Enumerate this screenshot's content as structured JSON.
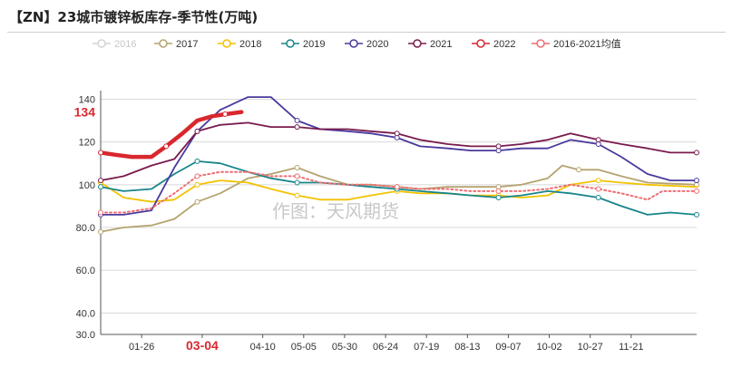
{
  "title": "【ZN】23城市镀锌板库存-季节性(万吨)",
  "watermark": "作图：天风期货",
  "chart_data": {
    "type": "line",
    "title": "【ZN】23城市镀锌板库存-季节性(万吨)",
    "xlabel": "",
    "ylabel": "",
    "ylim": [
      30,
      144
    ],
    "y_ticks": [
      "30.0",
      "40.0",
      "60.0",
      "80.0",
      "100",
      "120",
      "140"
    ],
    "x_ticks": [
      "01-26",
      "03-04",
      "04-10",
      "05-05",
      "05-30",
      "06-24",
      "07-19",
      "08-13",
      "09-07",
      "10-02",
      "10-27",
      "11-21"
    ],
    "highlight": {
      "x_label": "03-04",
      "y_label": "134"
    },
    "grid": true,
    "legend_position": "top",
    "x_domain": [
      "01-01",
      "12-31"
    ],
    "series": [
      {
        "name": "2016",
        "color": "#d4d4d4",
        "hidden": true,
        "values": []
      },
      {
        "name": "2017",
        "color": "#b5a36f",
        "values": [
          [
            "01-01",
            78
          ],
          [
            "01-15",
            80
          ],
          [
            "02-01",
            81
          ],
          [
            "02-15",
            84
          ],
          [
            "03-01",
            92
          ],
          [
            "03-15",
            96
          ],
          [
            "04-01",
            103
          ],
          [
            "04-15",
            105
          ],
          [
            "05-01",
            108
          ],
          [
            "05-15",
            104
          ],
          [
            "06-01",
            100
          ],
          [
            "06-15",
            100
          ],
          [
            "07-01",
            99
          ],
          [
            "07-15",
            98
          ],
          [
            "08-01",
            99
          ],
          [
            "08-15",
            99
          ],
          [
            "09-01",
            99
          ],
          [
            "09-15",
            100
          ],
          [
            "10-01",
            103
          ],
          [
            "10-10",
            109
          ],
          [
            "10-20",
            107
          ],
          [
            "11-01",
            107
          ],
          [
            "11-15",
            104
          ],
          [
            "12-01",
            101
          ],
          [
            "12-31",
            100
          ]
        ]
      },
      {
        "name": "2018",
        "color": "#f2c200",
        "values": [
          [
            "01-01",
            101
          ],
          [
            "01-15",
            94
          ],
          [
            "02-01",
            92
          ],
          [
            "02-15",
            93
          ],
          [
            "03-01",
            100
          ],
          [
            "03-15",
            102
          ],
          [
            "04-01",
            101
          ],
          [
            "04-15",
            98
          ],
          [
            "05-01",
            95
          ],
          [
            "05-15",
            93
          ],
          [
            "06-01",
            93
          ],
          [
            "06-15",
            95
          ],
          [
            "07-01",
            97
          ],
          [
            "07-15",
            96
          ],
          [
            "08-01",
            96
          ],
          [
            "08-15",
            95
          ],
          [
            "09-01",
            95
          ],
          [
            "09-15",
            94
          ],
          [
            "10-01",
            95
          ],
          [
            "10-15",
            100
          ],
          [
            "11-01",
            102
          ],
          [
            "11-15",
            101
          ],
          [
            "12-01",
            100
          ],
          [
            "12-31",
            99
          ]
        ]
      },
      {
        "name": "2019",
        "color": "#17858a",
        "values": [
          [
            "01-01",
            99
          ],
          [
            "01-15",
            97
          ],
          [
            "02-01",
            98
          ],
          [
            "02-15",
            105
          ],
          [
            "03-01",
            111
          ],
          [
            "03-15",
            110
          ],
          [
            "04-01",
            106
          ],
          [
            "04-15",
            103
          ],
          [
            "05-01",
            101
          ],
          [
            "05-15",
            101
          ],
          [
            "06-01",
            100
          ],
          [
            "06-15",
            99
          ],
          [
            "07-01",
            98
          ],
          [
            "07-15",
            97
          ],
          [
            "08-01",
            96
          ],
          [
            "08-15",
            95
          ],
          [
            "09-01",
            94
          ],
          [
            "09-15",
            95
          ],
          [
            "10-01",
            97
          ],
          [
            "10-15",
            96
          ],
          [
            "11-01",
            94
          ],
          [
            "11-15",
            90
          ],
          [
            "12-01",
            86
          ],
          [
            "12-15",
            87
          ],
          [
            "12-31",
            86
          ]
        ]
      },
      {
        "name": "2020",
        "color": "#4a3a9e",
        "values": [
          [
            "01-01",
            86
          ],
          [
            "01-15",
            86
          ],
          [
            "02-01",
            88
          ],
          [
            "02-15",
            108
          ],
          [
            "03-01",
            125
          ],
          [
            "03-15",
            135
          ],
          [
            "04-01",
            141
          ],
          [
            "04-15",
            141
          ],
          [
            "05-01",
            130
          ],
          [
            "05-15",
            126
          ],
          [
            "06-01",
            125
          ],
          [
            "06-15",
            124
          ],
          [
            "07-01",
            122
          ],
          [
            "07-15",
            118
          ],
          [
            "08-01",
            117
          ],
          [
            "08-15",
            116
          ],
          [
            "09-01",
            116
          ],
          [
            "09-15",
            117
          ],
          [
            "10-01",
            117
          ],
          [
            "10-15",
            121
          ],
          [
            "11-01",
            119
          ],
          [
            "11-15",
            113
          ],
          [
            "12-01",
            105
          ],
          [
            "12-15",
            102
          ],
          [
            "12-31",
            102
          ]
        ]
      },
      {
        "name": "2021",
        "color": "#7a1b4d",
        "values": [
          [
            "01-01",
            102
          ],
          [
            "01-15",
            104
          ],
          [
            "02-01",
            109
          ],
          [
            "02-15",
            112
          ],
          [
            "03-01",
            125
          ],
          [
            "03-15",
            128
          ],
          [
            "04-01",
            129
          ],
          [
            "04-15",
            127
          ],
          [
            "05-01",
            127
          ],
          [
            "05-15",
            126
          ],
          [
            "06-01",
            126
          ],
          [
            "06-15",
            125
          ],
          [
            "07-01",
            124
          ],
          [
            "07-15",
            121
          ],
          [
            "08-01",
            119
          ],
          [
            "08-15",
            118
          ],
          [
            "09-01",
            118
          ],
          [
            "09-15",
            119
          ],
          [
            "10-01",
            121
          ],
          [
            "10-15",
            124
          ],
          [
            "11-01",
            121
          ],
          [
            "11-15",
            119
          ],
          [
            "12-01",
            117
          ],
          [
            "12-15",
            115
          ],
          [
            "12-31",
            115
          ]
        ]
      },
      {
        "name": "2022",
        "color": "#d9272e",
        "bold": true,
        "values": [
          [
            "01-01",
            115
          ],
          [
            "01-10",
            114
          ],
          [
            "01-20",
            113
          ],
          [
            "02-01",
            113
          ],
          [
            "02-10",
            118
          ],
          [
            "02-20",
            124
          ],
          [
            "03-01",
            130
          ],
          [
            "03-10",
            132
          ],
          [
            "03-18",
            133
          ],
          [
            "03-28",
            134
          ]
        ]
      },
      {
        "name": "2016-2021均值",
        "color": "#ef6e73",
        "dotted": true,
        "values": [
          [
            "01-01",
            87
          ],
          [
            "01-15",
            87
          ],
          [
            "02-01",
            89
          ],
          [
            "02-15",
            96
          ],
          [
            "03-01",
            104
          ],
          [
            "03-15",
            106
          ],
          [
            "04-01",
            106
          ],
          [
            "04-15",
            104
          ],
          [
            "05-01",
            104
          ],
          [
            "05-15",
            101
          ],
          [
            "06-01",
            100
          ],
          [
            "06-15",
            100
          ],
          [
            "07-01",
            99
          ],
          [
            "07-15",
            98
          ],
          [
            "08-01",
            98
          ],
          [
            "08-15",
            97
          ],
          [
            "09-01",
            97
          ],
          [
            "09-15",
            97
          ],
          [
            "10-01",
            98
          ],
          [
            "10-15",
            100
          ],
          [
            "11-01",
            98
          ],
          [
            "11-15",
            96
          ],
          [
            "12-01",
            93
          ],
          [
            "12-10",
            97
          ],
          [
            "12-31",
            97
          ]
        ]
      }
    ]
  }
}
